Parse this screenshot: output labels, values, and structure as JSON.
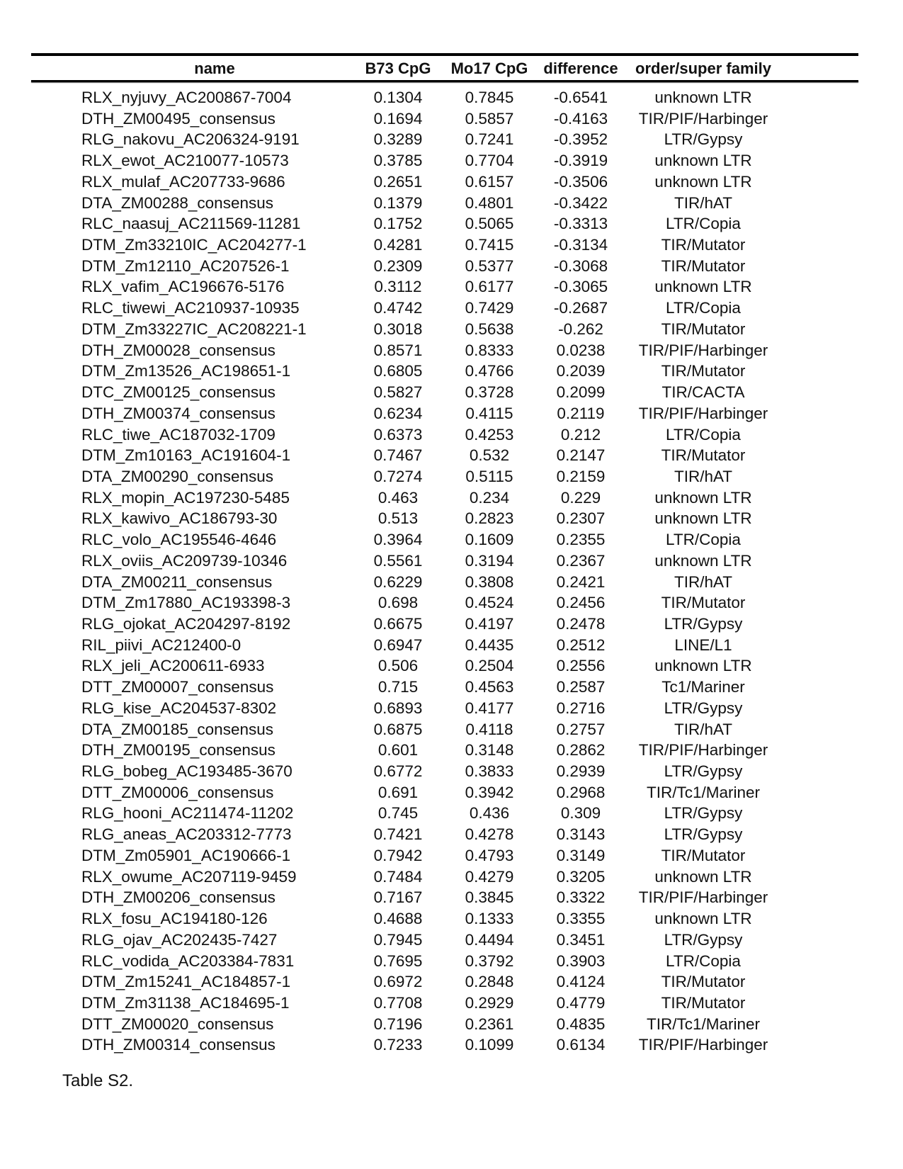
{
  "table": {
    "headers": [
      "name",
      "B73 CpG",
      "Mo17 CpG",
      "difference",
      "order/super family"
    ],
    "rows": [
      [
        "RLX_nyjuvy_AC200867-7004",
        "0.1304",
        "0.7845",
        "-0.6541",
        "unknown LTR"
      ],
      [
        "DTH_ZM00495_consensus",
        "0.1694",
        "0.5857",
        "-0.4163",
        "TIR/PIF/Harbinger"
      ],
      [
        "RLG_nakovu_AC206324-9191",
        "0.3289",
        "0.7241",
        "-0.3952",
        "LTR/Gypsy"
      ],
      [
        "RLX_ewot_AC210077-10573",
        "0.3785",
        "0.7704",
        "-0.3919",
        "unknown LTR"
      ],
      [
        "RLX_mulaf_AC207733-9686",
        "0.2651",
        "0.6157",
        "-0.3506",
        "unknown LTR"
      ],
      [
        "DTA_ZM00288_consensus",
        "0.1379",
        "0.4801",
        "-0.3422",
        "TIR/hAT"
      ],
      [
        "RLC_naasuj_AC211569-11281",
        "0.1752",
        "0.5065",
        "-0.3313",
        "LTR/Copia"
      ],
      [
        "DTM_Zm33210IC_AC204277-1",
        "0.4281",
        "0.7415",
        "-0.3134",
        "TIR/Mutator"
      ],
      [
        "DTM_Zm12110_AC207526-1",
        "0.2309",
        "0.5377",
        "-0.3068",
        "TIR/Mutator"
      ],
      [
        "RLX_vafim_AC196676-5176",
        "0.3112",
        "0.6177",
        "-0.3065",
        "unknown LTR"
      ],
      [
        "RLC_tiwewi_AC210937-10935",
        "0.4742",
        "0.7429",
        "-0.2687",
        "LTR/Copia"
      ],
      [
        "DTM_Zm33227IC_AC208221-1",
        "0.3018",
        "0.5638",
        "-0.262",
        "TIR/Mutator"
      ],
      [
        "DTH_ZM00028_consensus",
        "0.8571",
        "0.8333",
        "0.0238",
        "TIR/PIF/Harbinger"
      ],
      [
        "DTM_Zm13526_AC198651-1",
        "0.6805",
        "0.4766",
        "0.2039",
        "TIR/Mutator"
      ],
      [
        "DTC_ZM00125_consensus",
        "0.5827",
        "0.3728",
        "0.2099",
        "TIR/CACTA"
      ],
      [
        "DTH_ZM00374_consensus",
        "0.6234",
        "0.4115",
        "0.2119",
        "TIR/PIF/Harbinger"
      ],
      [
        "RLC_tiwe_AC187032-1709",
        "0.6373",
        "0.4253",
        "0.212",
        "LTR/Copia"
      ],
      [
        "DTM_Zm10163_AC191604-1",
        "0.7467",
        "0.532",
        "0.2147",
        "TIR/Mutator"
      ],
      [
        "DTA_ZM00290_consensus",
        "0.7274",
        "0.5115",
        "0.2159",
        "TIR/hAT"
      ],
      [
        "RLX_mopin_AC197230-5485",
        "0.463",
        "0.234",
        "0.229",
        "unknown LTR"
      ],
      [
        "RLX_kawivo_AC186793-30",
        "0.513",
        "0.2823",
        "0.2307",
        "unknown LTR"
      ],
      [
        "RLC_volo_AC195546-4646",
        "0.3964",
        "0.1609",
        "0.2355",
        "LTR/Copia"
      ],
      [
        "RLX_oviis_AC209739-10346",
        "0.5561",
        "0.3194",
        "0.2367",
        "unknown LTR"
      ],
      [
        "DTA_ZM00211_consensus",
        "0.6229",
        "0.3808",
        "0.2421",
        "TIR/hAT"
      ],
      [
        "DTM_Zm17880_AC193398-3",
        "0.698",
        "0.4524",
        "0.2456",
        "TIR/Mutator"
      ],
      [
        "RLG_ojokat_AC204297-8192",
        "0.6675",
        "0.4197",
        "0.2478",
        "LTR/Gypsy"
      ],
      [
        "RIL_piivi_AC212400-0",
        "0.6947",
        "0.4435",
        "0.2512",
        "LINE/L1"
      ],
      [
        "RLX_jeli_AC200611-6933",
        "0.506",
        "0.2504",
        "0.2556",
        "unknown LTR"
      ],
      [
        "DTT_ZM00007_consensus",
        "0.715",
        "0.4563",
        "0.2587",
        "Tc1/Mariner"
      ],
      [
        "RLG_kise_AC204537-8302",
        "0.6893",
        "0.4177",
        "0.2716",
        "LTR/Gypsy"
      ],
      [
        "DTA_ZM00185_consensus",
        "0.6875",
        "0.4118",
        "0.2757",
        "TIR/hAT"
      ],
      [
        "DTH_ZM00195_consensus",
        "0.601",
        "0.3148",
        "0.2862",
        "TIR/PIF/Harbinger"
      ],
      [
        "RLG_bobeg_AC193485-3670",
        "0.6772",
        "0.3833",
        "0.2939",
        "LTR/Gypsy"
      ],
      [
        "DTT_ZM00006_consensus",
        "0.691",
        "0.3942",
        "0.2968",
        "TIR/Tc1/Mariner"
      ],
      [
        "RLG_hooni_AC211474-11202",
        "0.745",
        "0.436",
        "0.309",
        "LTR/Gypsy"
      ],
      [
        "RLG_aneas_AC203312-7773",
        "0.7421",
        "0.4278",
        "0.3143",
        "LTR/Gypsy"
      ],
      [
        "DTM_Zm05901_AC190666-1",
        "0.7942",
        "0.4793",
        "0.3149",
        "TIR/Mutator"
      ],
      [
        "RLX_owume_AC207119-9459",
        "0.7484",
        "0.4279",
        "0.3205",
        "unknown LTR"
      ],
      [
        "DTH_ZM00206_consensus",
        "0.7167",
        "0.3845",
        "0.3322",
        "TIR/PIF/Harbinger"
      ],
      [
        "RLX_fosu_AC194180-126",
        "0.4688",
        "0.1333",
        "0.3355",
        "unknown LTR"
      ],
      [
        "RLG_ojav_AC202435-7427",
        "0.7945",
        "0.4494",
        "0.3451",
        "LTR/Gypsy"
      ],
      [
        "RLC_vodida_AC203384-7831",
        "0.7695",
        "0.3792",
        "0.3903",
        "LTR/Copia"
      ],
      [
        "DTM_Zm15241_AC184857-1",
        "0.6972",
        "0.2848",
        "0.4124",
        "TIR/Mutator"
      ],
      [
        "DTM_Zm31138_AC184695-1",
        "0.7708",
        "0.2929",
        "0.4779",
        "TIR/Mutator"
      ],
      [
        "DTT_ZM00020_consensus",
        "0.7196",
        "0.2361",
        "0.4835",
        "TIR/Tc1/Mariner"
      ],
      [
        "DTH_ZM00314_consensus",
        "0.7233",
        "0.1099",
        "0.6134",
        "TIR/PIF/Harbinger"
      ]
    ]
  },
  "caption": "Table S2."
}
